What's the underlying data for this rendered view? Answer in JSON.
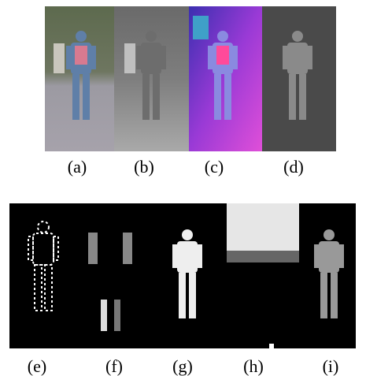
{
  "figure": {
    "top_labels": [
      "(a)",
      "(b)",
      "(c)",
      "(d)"
    ],
    "bottom_labels": [
      "(e)",
      "(f)",
      "(g)",
      "(h)",
      "(i)"
    ]
  }
}
